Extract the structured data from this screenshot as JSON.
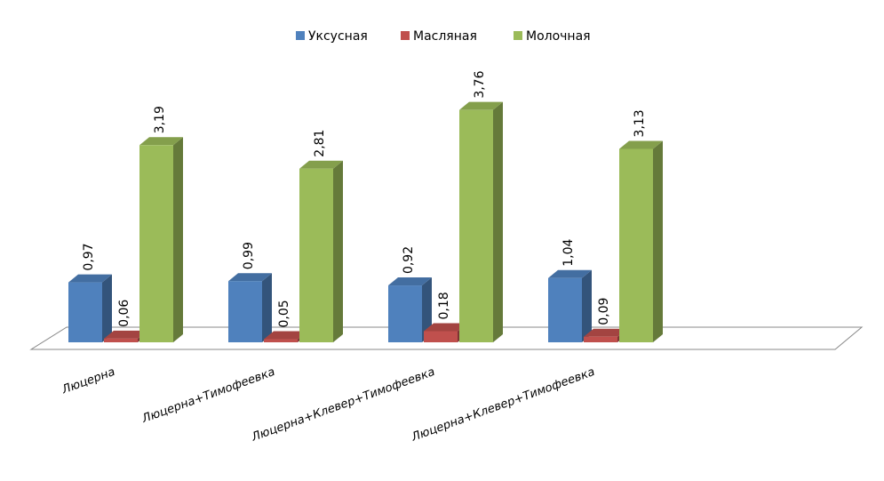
{
  "chart_data": {
    "type": "bar3d",
    "categories": [
      "Люцерна",
      "Люцерна+Тимофеевка",
      "Люцерна+Клевер+Тимофеевка",
      "Люцерна+Клевер+Тимофеевка"
    ],
    "series": [
      {
        "name": "Уксусная",
        "color": "#4f81bd",
        "values": [
          0.97,
          0.99,
          0.92,
          1.04
        ],
        "value_labels": [
          "0,97",
          "0,99",
          "0,92",
          "1,04"
        ]
      },
      {
        "name": "Масляная",
        "color": "#c0504d",
        "values": [
          0.06,
          0.05,
          0.18,
          0.09
        ],
        "value_labels": [
          "0,06",
          "0,05",
          "0,18",
          "0,09"
        ]
      },
      {
        "name": "Молочная",
        "color": "#9bbb59",
        "values": [
          3.19,
          2.81,
          3.76,
          3.13
        ],
        "value_labels": [
          "3,19",
          "2,81",
          "3,76",
          "3,13"
        ]
      }
    ],
    "legend": "top"
  }
}
